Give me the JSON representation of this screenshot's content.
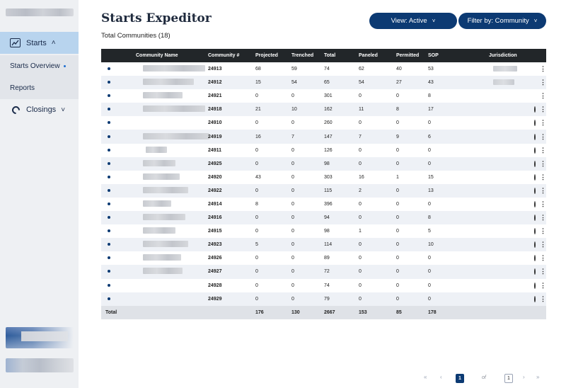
{
  "sidebar": {
    "nav_starts": "Starts",
    "sub_items": [
      "Starts Overview",
      "Reports"
    ],
    "nav_closings": "Closings"
  },
  "header": {
    "title": "Starts Expeditor",
    "subtitle": "Total Communities (18)",
    "view_button": "View: Active",
    "filter_button": "Filter by: Community"
  },
  "table": {
    "columns": [
      "Community Name",
      "Community #",
      "Projected",
      "Trenched",
      "Total",
      "Paneled",
      "Permitted",
      "SOP",
      "Jurisdiction"
    ],
    "rows": [
      {
        "num": "24913",
        "projected": "68",
        "trenched": "59",
        "total": "74",
        "paneled": "62",
        "permitted": "40",
        "sop": "53",
        "comment": "filled"
      },
      {
        "num": "24912",
        "projected": "15",
        "trenched": "54",
        "total": "65",
        "paneled": "54",
        "permitted": "27",
        "sop": "43",
        "comment": "filled"
      },
      {
        "num": "24921",
        "projected": "0",
        "trenched": "0",
        "total": "301",
        "paneled": "0",
        "permitted": "0",
        "sop": "8",
        "comment": "filled"
      },
      {
        "num": "24918",
        "projected": "21",
        "trenched": "10",
        "total": "162",
        "paneled": "11",
        "permitted": "8",
        "sop": "17",
        "comment": "outline"
      },
      {
        "num": "24910",
        "projected": "0",
        "trenched": "0",
        "total": "260",
        "paneled": "0",
        "permitted": "0",
        "sop": "0",
        "comment": "outline"
      },
      {
        "num": "24919",
        "projected": "16",
        "trenched": "7",
        "total": "147",
        "paneled": "7",
        "permitted": "9",
        "sop": "6",
        "comment": "outline"
      },
      {
        "num": "24911",
        "projected": "0",
        "trenched": "0",
        "total": "126",
        "paneled": "0",
        "permitted": "0",
        "sop": "0",
        "comment": "outline"
      },
      {
        "num": "24925",
        "projected": "0",
        "trenched": "0",
        "total": "98",
        "paneled": "0",
        "permitted": "0",
        "sop": "0",
        "comment": "outline"
      },
      {
        "num": "24920",
        "projected": "43",
        "trenched": "0",
        "total": "303",
        "paneled": "16",
        "permitted": "1",
        "sop": "15",
        "comment": "outline"
      },
      {
        "num": "24922",
        "projected": "0",
        "trenched": "0",
        "total": "115",
        "paneled": "2",
        "permitted": "0",
        "sop": "13",
        "comment": "outline"
      },
      {
        "num": "24914",
        "projected": "8",
        "trenched": "0",
        "total": "396",
        "paneled": "0",
        "permitted": "0",
        "sop": "0",
        "comment": "outline"
      },
      {
        "num": "24916",
        "projected": "0",
        "trenched": "0",
        "total": "94",
        "paneled": "0",
        "permitted": "0",
        "sop": "8",
        "comment": "outline"
      },
      {
        "num": "24915",
        "projected": "0",
        "trenched": "0",
        "total": "98",
        "paneled": "1",
        "permitted": "0",
        "sop": "5",
        "comment": "outline"
      },
      {
        "num": "24923",
        "projected": "5",
        "trenched": "0",
        "total": "114",
        "paneled": "0",
        "permitted": "0",
        "sop": "10",
        "comment": "outline"
      },
      {
        "num": "24926",
        "projected": "0",
        "trenched": "0",
        "total": "89",
        "paneled": "0",
        "permitted": "0",
        "sop": "0",
        "comment": "outline"
      },
      {
        "num": "24927",
        "projected": "0",
        "trenched": "0",
        "total": "72",
        "paneled": "0",
        "permitted": "0",
        "sop": "0",
        "comment": "outline"
      },
      {
        "num": "24928",
        "projected": "0",
        "trenched": "0",
        "total": "74",
        "paneled": "0",
        "permitted": "0",
        "sop": "0",
        "comment": "outline"
      },
      {
        "num": "24929",
        "projected": "0",
        "trenched": "0",
        "total": "79",
        "paneled": "0",
        "permitted": "0",
        "sop": "0",
        "comment": "outline"
      }
    ],
    "totals": {
      "label": "Total",
      "projected": "176",
      "trenched": "130",
      "total": "2667",
      "paneled": "153",
      "permitted": "85",
      "sop": "178"
    }
  },
  "pager": {
    "current_page": "1",
    "of_label": "of",
    "total_pages": "1",
    "first_icon": "«",
    "prev_icon": "‹",
    "next_icon": "›",
    "last_icon": "»"
  },
  "icons": {
    "row_dot": "status-dot-icon",
    "comment": "comment-bubble-icon",
    "more": "kebab-menu-icon"
  },
  "colors": {
    "primary": "#0c3a73",
    "accent": "#1565c0",
    "sidebar_bg": "#eef0f3",
    "active_nav": "#b8d4ee",
    "header_bg": "#222629"
  }
}
